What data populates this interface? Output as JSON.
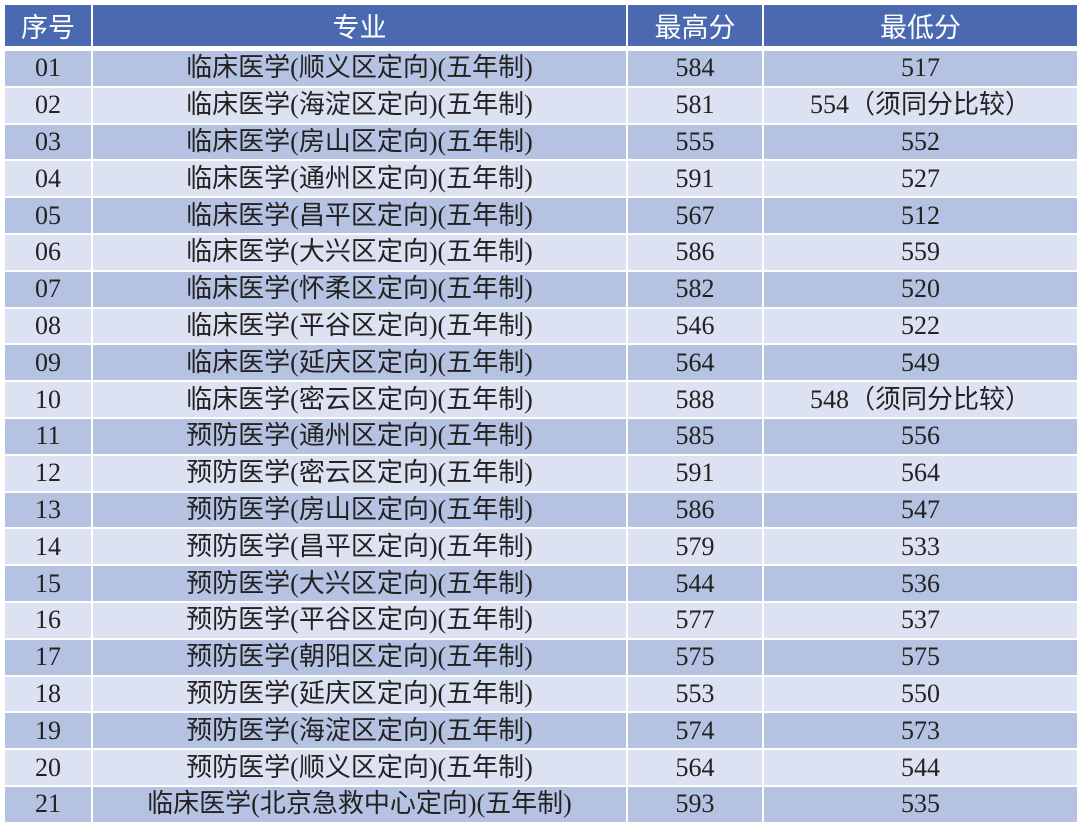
{
  "headers": [
    "序号",
    "专业",
    "最高分",
    "最低分"
  ],
  "rows": [
    [
      "01",
      "临床医学(顺义区定向)(五年制)",
      "584",
      "517"
    ],
    [
      "02",
      "临床医学(海淀区定向)(五年制)",
      "581",
      "554（须同分比较）"
    ],
    [
      "03",
      "临床医学(房山区定向)(五年制)",
      "555",
      "552"
    ],
    [
      "04",
      "临床医学(通州区定向)(五年制)",
      "591",
      "527"
    ],
    [
      "05",
      "临床医学(昌平区定向)(五年制)",
      "567",
      "512"
    ],
    [
      "06",
      "临床医学(大兴区定向)(五年制)",
      "586",
      "559"
    ],
    [
      "07",
      "临床医学(怀柔区定向)(五年制)",
      "582",
      "520"
    ],
    [
      "08",
      "临床医学(平谷区定向)(五年制)",
      "546",
      "522"
    ],
    [
      "09",
      "临床医学(延庆区定向)(五年制)",
      "564",
      "549"
    ],
    [
      "10",
      "临床医学(密云区定向)(五年制)",
      "588",
      "548（须同分比较）"
    ],
    [
      "11",
      "预防医学(通州区定向)(五年制)",
      "585",
      "556"
    ],
    [
      "12",
      "预防医学(密云区定向)(五年制)",
      "591",
      "564"
    ],
    [
      "13",
      "预防医学(房山区定向)(五年制)",
      "586",
      "547"
    ],
    [
      "14",
      "预防医学(昌平区定向)(五年制)",
      "579",
      "533"
    ],
    [
      "15",
      "预防医学(大兴区定向)(五年制)",
      "544",
      "536"
    ],
    [
      "16",
      "预防医学(平谷区定向)(五年制)",
      "577",
      "537"
    ],
    [
      "17",
      "预防医学(朝阳区定向)(五年制)",
      "575",
      "575"
    ],
    [
      "18",
      "预防医学(延庆区定向)(五年制)",
      "553",
      "550"
    ],
    [
      "19",
      "预防医学(海淀区定向)(五年制)",
      "574",
      "573"
    ],
    [
      "20",
      "预防医学(顺义区定向)(五年制)",
      "564",
      "544"
    ],
    [
      "21",
      "临床医学(北京急救中心定向)(五年制)",
      "593",
      "535"
    ]
  ],
  "colors": {
    "header": "#4a69b0",
    "row_odd": "#b5c2e1",
    "row_even": "#dce2f1"
  }
}
